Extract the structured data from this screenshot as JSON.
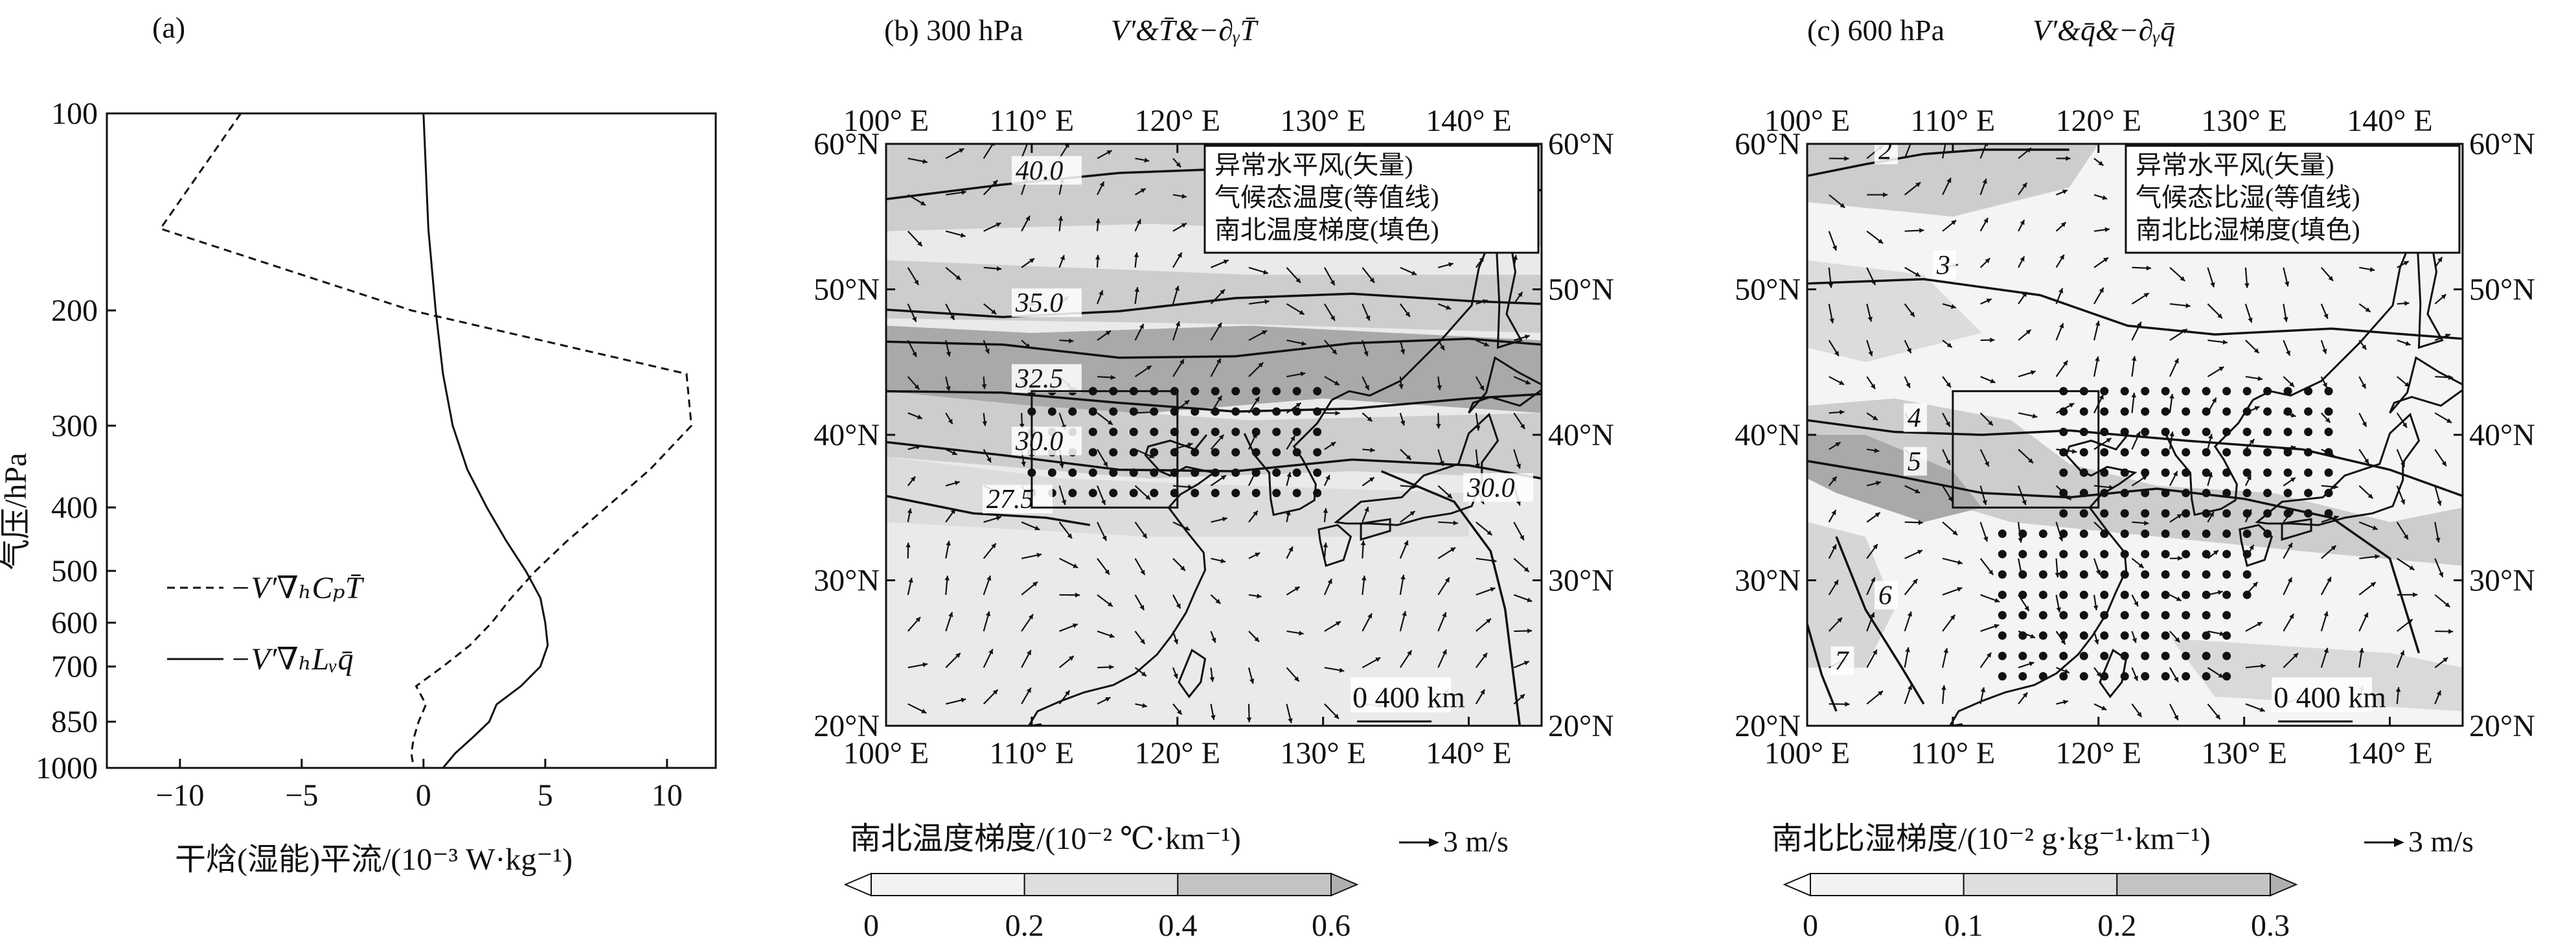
{
  "chart_data": [
    {
      "type": "line",
      "panel_label": "(a)",
      "xlabel": "干焓(湿能)平流/(10⁻³ W·kg⁻¹)",
      "ylabel": "气压/hPa",
      "xlim": [
        -13,
        12
      ],
      "ylim": [
        1000,
        100
      ],
      "x_ticks": [
        "−10",
        "−5",
        "0",
        "5",
        "10"
      ],
      "x_tick_values": [
        -10,
        -5,
        0,
        5,
        10
      ],
      "y_ticks": [
        "100",
        "200",
        "300",
        "400",
        "500",
        "600",
        "700",
        "850",
        "1000"
      ],
      "y_tick_values": [
        100,
        200,
        300,
        400,
        500,
        600,
        700,
        850,
        1000
      ],
      "legend_position": "lower-left",
      "series": [
        {
          "name": "−V′∇ₕCₚT̄",
          "style": "dashed",
          "pressure": [
            100,
            150,
            200,
            250,
            300,
            350,
            400,
            450,
            500,
            550,
            600,
            650,
            700,
            750,
            800,
            850,
            900,
            950,
            1000
          ],
          "values": [
            -7.5,
            -10.8,
            -0.5,
            10.8,
            11.0,
            9.3,
            7.5,
            5.9,
            4.6,
            3.6,
            2.8,
            1.9,
            0.8,
            -0.3,
            0.1,
            -0.2,
            -0.4,
            -0.5,
            -0.4
          ]
        },
        {
          "name": "−V′∇ₕLᵥq̄",
          "style": "solid",
          "pressure": [
            100,
            150,
            200,
            250,
            300,
            350,
            400,
            450,
            500,
            550,
            600,
            650,
            700,
            750,
            800,
            850,
            900,
            950,
            1000
          ],
          "values": [
            0.0,
            0.2,
            0.5,
            0.8,
            1.2,
            1.8,
            2.6,
            3.4,
            4.2,
            4.8,
            5.0,
            5.1,
            4.8,
            4.0,
            3.0,
            2.7,
            2.0,
            1.3,
            0.8
          ]
        }
      ]
    },
    {
      "type": "heatmap",
      "panel_label": "(b) 300 hPa",
      "title_math": "V′&T̄&−∂ᵧT̄",
      "lon_ticks": [
        "100° E",
        "110° E",
        "120° E",
        "130° E",
        "140° E"
      ],
      "lon_values": [
        100,
        110,
        120,
        130,
        140
      ],
      "lat_ticks": [
        "20°N",
        "30°N",
        "40°N",
        "50°N",
        "60°N"
      ],
      "lat_values": [
        20,
        30,
        40,
        50,
        60
      ],
      "xlim": [
        100,
        145
      ],
      "ylim": [
        20,
        60
      ],
      "box_legend": [
        "异常水平风(矢量)",
        "气候态温度(等值线)",
        "南北温度梯度(填色)"
      ],
      "contour_labels": [
        "40.0",
        "35.0",
        "32.5",
        "30.0",
        "27.5",
        "30.0"
      ],
      "contours": [
        {
          "label": "40.0",
          "points": [
            [
              100,
              56.2
            ],
            [
              108,
              57.2
            ],
            [
              116,
              58.0
            ],
            [
              124,
              58.3
            ],
            [
              132,
              58.1
            ],
            [
              140,
              57.4
            ],
            [
              145,
              56.8
            ]
          ]
        },
        {
          "label": "35.0",
          "points": [
            [
              100,
              48.6
            ],
            [
              108,
              48.1
            ],
            [
              116,
              48.5
            ],
            [
              124,
              49.4
            ],
            [
              132,
              49.7
            ],
            [
              140,
              49.2
            ],
            [
              145,
              49.0
            ]
          ]
        },
        {
          "label": "",
          "points": [
            [
              100,
              46.4
            ],
            [
              108,
              46.2
            ],
            [
              116,
              45.3
            ],
            [
              124,
              45.4
            ],
            [
              132,
              46.3
            ],
            [
              140,
              46.6
            ],
            [
              145,
              46.2
            ]
          ]
        },
        {
          "label": "32.5",
          "points": [
            [
              100,
              43.0
            ],
            [
              108,
              42.9
            ],
            [
              116,
              42.2
            ],
            [
              124,
              41.6
            ],
            [
              132,
              41.8
            ],
            [
              140,
              42.5
            ],
            [
              145,
              42.8
            ]
          ]
        },
        {
          "label": "30.0",
          "points": [
            [
              100,
              39.5
            ],
            [
              108,
              38.6
            ],
            [
              116,
              37.6
            ],
            [
              124,
              37.5
            ],
            [
              132,
              38.3
            ],
            [
              140,
              37.9
            ],
            [
              145,
              37.0
            ]
          ]
        },
        {
          "label": "27.5",
          "points": [
            [
              100,
              35.8
            ],
            [
              106,
              34.6
            ],
            [
              111,
              34.3
            ],
            [
              114,
              33.8
            ]
          ]
        },
        {
          "label": "30.0",
          "points": [
            [
              134,
              37.5
            ],
            [
              139,
              35.4
            ],
            [
              141.5,
              32.0
            ],
            [
              142.5,
              28.0
            ],
            [
              143,
              24.0
            ],
            [
              143.5,
              20.0
            ]
          ]
        }
      ],
      "stipple_region": {
        "lon": [
          110,
          130
        ],
        "lat": [
          36,
          44
        ]
      },
      "highlight_box": {
        "lon": [
          110,
          120
        ],
        "lat": [
          35,
          43
        ]
      },
      "scale_bar": "0 400 km",
      "colorbar": {
        "title": "南北温度梯度/(10⁻² ℃·km⁻¹)",
        "ticks": [
          "0",
          "0.2",
          "0.4",
          "0.6"
        ],
        "values": [
          0,
          0.2,
          0.4,
          0.6
        ]
      },
      "reference_vector": "3 m/s"
    },
    {
      "type": "heatmap",
      "panel_label": "(c) 600 hPa",
      "title_math": "V′&q̄&−∂ᵧq̄",
      "lon_ticks": [
        "100° E",
        "110° E",
        "120° E",
        "130° E",
        "140° E"
      ],
      "lon_values": [
        100,
        110,
        120,
        130,
        140
      ],
      "lat_ticks": [
        "20°N",
        "30°N",
        "40°N",
        "50°N",
        "60°N"
      ],
      "lat_values": [
        20,
        30,
        40,
        50,
        60
      ],
      "xlim": [
        100,
        145
      ],
      "ylim": [
        20,
        60
      ],
      "box_legend": [
        "异常水平风(矢量)",
        "气候态比湿(等值线)",
        "南北比湿梯度(填色)"
      ],
      "contour_labels": [
        "2",
        "3",
        "4",
        "5",
        "6",
        "7"
      ],
      "contours": [
        {
          "label": "2",
          "points": [
            [
              100,
              57.8
            ],
            [
              104,
              58.6
            ],
            [
              108,
              59.3
            ],
            [
              112,
              59.6
            ],
            [
              118,
              59.6
            ]
          ]
        },
        {
          "label": "3",
          "points": [
            [
              100,
              50.4
            ],
            [
              108,
              50.7
            ],
            [
              116,
              49.6
            ],
            [
              122,
              47.5
            ],
            [
              128,
              46.9
            ],
            [
              136,
              47.3
            ],
            [
              145,
              46.6
            ]
          ]
        },
        {
          "label": "4",
          "points": [
            [
              100,
              41.0
            ],
            [
              106,
              40.2
            ],
            [
              112,
              40.0
            ],
            [
              118,
              40.3
            ],
            [
              126,
              39.6
            ],
            [
              134,
              39.0
            ],
            [
              140,
              37.6
            ],
            [
              145,
              35.8
            ]
          ]
        },
        {
          "label": "5",
          "points": [
            [
              100,
              38.2
            ],
            [
              106,
              37.2
            ],
            [
              112,
              36.0
            ],
            [
              118,
              35.7
            ],
            [
              124,
              36.3
            ],
            [
              130,
              35.6
            ],
            [
              136,
              34.3
            ],
            [
              140,
              31.5
            ],
            [
              142,
              25.0
            ]
          ]
        },
        {
          "label": "6",
          "points": [
            [
              102,
              33.0
            ],
            [
              104,
              28.0
            ],
            [
              106.5,
              24.0
            ],
            [
              108,
              21.5
            ]
          ]
        },
        {
          "label": "7",
          "points": [
            [
              100,
              27.0
            ],
            [
              101,
              23.5
            ],
            [
              102,
              21.0
            ]
          ]
        }
      ],
      "stipple_region": {
        "lon": [
          112,
          137
        ],
        "lat": [
          22,
          44
        ]
      },
      "highlight_box": {
        "lon": [
          110,
          120
        ],
        "lat": [
          35,
          43
        ]
      },
      "scale_bar": "0 400 km",
      "colorbar": {
        "title": "南北比湿梯度/(10⁻² g·kg⁻¹·km⁻¹)",
        "ticks": [
          "0",
          "0.1",
          "0.2",
          "0.3"
        ],
        "values": [
          0,
          0.1,
          0.2,
          0.3
        ]
      },
      "reference_vector": "3 m/s"
    }
  ],
  "colors": {
    "shade_light": "#eaeaea",
    "shade_mid": "#cdcdcd",
    "shade_dark": "#a9a9a9",
    "ink": "#111111"
  }
}
